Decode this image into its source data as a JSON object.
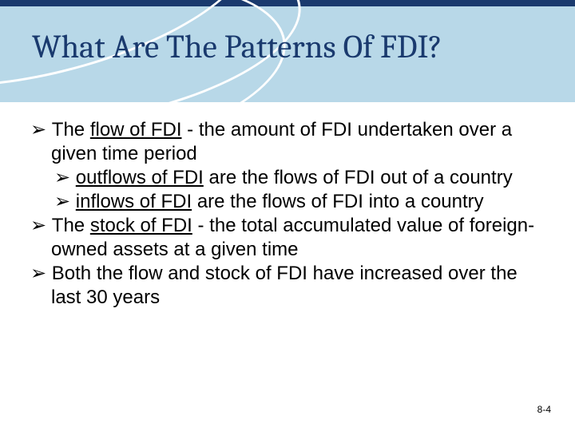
{
  "header": {
    "title": "What Are The Patterns Of FDI?",
    "band_color": "#b8d8e8",
    "band_top_bar": "#1a3a6e",
    "title_color": "#1a3a6e",
    "title_fontsize_pt": 30
  },
  "bullets": {
    "b1_pre": "The ",
    "b1_u": "flow of FDI",
    "b1_post": " - the amount of FDI undertaken over a given time period",
    "b1a_u": "outflows of FDI",
    "b1a_post": " are the flows of FDI out of a country",
    "b1b_u": "inflows of FDI",
    "b1b_post": " are the flows of FDI into a country",
    "b2_pre": "The ",
    "b2_u": "stock of FDI",
    "b2_post": " - the total accumulated value of foreign-owned assets at a given time",
    "b3": "Both the flow and stock of FDI have increased over the last 30 years"
  },
  "footer": {
    "page_number": "8-4"
  },
  "styling": {
    "body_fontsize_pt": 18,
    "body_color": "#000000",
    "background_color": "#ffffff",
    "arrow_glyph": "➢"
  }
}
